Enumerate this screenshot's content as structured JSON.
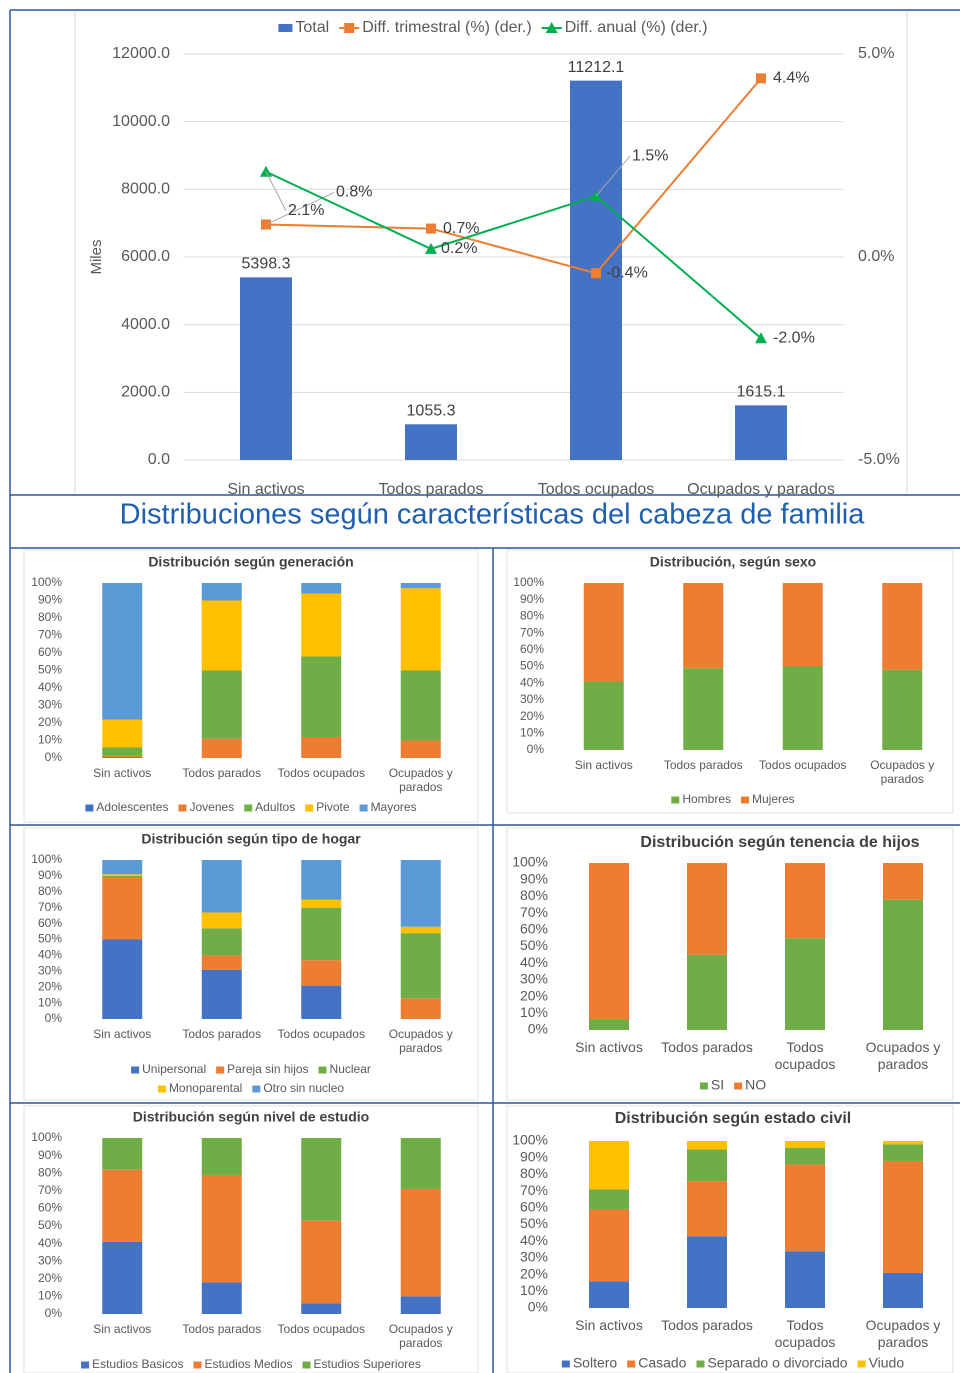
{
  "heading": "Distribuciones según características del cabeza de familia",
  "chart_data": [
    {
      "type": "combo",
      "y_label": "Miles",
      "categories": [
        "Sin activos",
        "Todos parados",
        "Todos ocupados",
        "Ocupados y parados"
      ],
      "series": [
        {
          "name": "Total",
          "type": "bar",
          "color": "#4472c4",
          "values": [
            5398.3,
            1055.3,
            11212.1,
            1615.1
          ]
        },
        {
          "name": "Diff. trimestral (%) (der.)",
          "type": "line",
          "axis": "y2",
          "color": "#ed7d31",
          "marker": "square",
          "values": [
            0.8,
            0.7,
            -0.4,
            4.4
          ],
          "value_labels": [
            "0.8%",
            "0.7%",
            "-0.4%",
            "4.4%"
          ]
        },
        {
          "name": "Diff. anual (%) (der.)",
          "type": "line",
          "axis": "y2",
          "color": "#00b050",
          "marker": "triangle",
          "values": [
            2.1,
            0.2,
            1.5,
            -2.0
          ],
          "value_labels": [
            "2.1%",
            "0.2%",
            "1.5%",
            "-2.0%"
          ]
        }
      ],
      "ylim": [
        0,
        12000
      ],
      "yticks": [
        {
          "value": 0,
          "label": "0.0"
        },
        {
          "value": 2000,
          "label": "2000.0"
        },
        {
          "value": 4000,
          "label": "4000.0"
        },
        {
          "value": 6000,
          "label": "6000.0"
        },
        {
          "value": 8000,
          "label": "8000.0"
        },
        {
          "value": 10000,
          "label": "10000.0"
        },
        {
          "value": 12000,
          "label": "12000.0"
        }
      ],
      "y2lim": [
        -5,
        5
      ],
      "y2ticks": [
        {
          "value": -5,
          "label": "-5.0%"
        },
        {
          "value": 0,
          "label": "0.0%"
        },
        {
          "value": 5,
          "label": "5.0%"
        }
      ],
      "grid": true,
      "legend": "top"
    },
    {
      "type": "stacked_bar",
      "title": "Distribución según generación",
      "categories": [
        "Sin activos",
        "Todos parados",
        "Todos ocupados",
        "Ocupados y parados"
      ],
      "series": [
        {
          "name": "Adolescentes",
          "color": "#4472c4",
          "values": [
            0.5,
            0,
            0,
            0
          ]
        },
        {
          "name": "Jovenes",
          "color": "#ed7d31",
          "values": [
            1,
            11,
            12,
            10
          ]
        },
        {
          "name": "Adultos",
          "color": "#70ad47",
          "values": [
            4.5,
            39,
            46,
            40
          ]
        },
        {
          "name": "Pivote",
          "color": "#ffc000",
          "values": [
            16,
            40,
            36,
            47
          ]
        },
        {
          "name": "Mayores",
          "color": "#5b9bd5",
          "values": [
            78,
            10,
            6,
            3
          ]
        }
      ],
      "ylim": [
        0,
        100
      ],
      "yticks": [
        {
          "value": 0,
          "label": "0%"
        },
        {
          "value": 10,
          "label": "10%"
        },
        {
          "value": 20,
          "label": "20%"
        },
        {
          "value": 30,
          "label": "30%"
        },
        {
          "value": 40,
          "label": "40%"
        },
        {
          "value": 50,
          "label": "50%"
        },
        {
          "value": 60,
          "label": "60%"
        },
        {
          "value": 70,
          "label": "70%"
        },
        {
          "value": 80,
          "label": "80%"
        },
        {
          "value": 90,
          "label": "90%"
        },
        {
          "value": 100,
          "label": "100%"
        }
      ],
      "grid": false,
      "legend": "bottom"
    },
    {
      "type": "stacked_bar",
      "title": "Distribución, según sexo",
      "categories": [
        "Sin activos",
        "Todos parados",
        "Todos ocupados",
        "Ocupados y parados"
      ],
      "series": [
        {
          "name": "Hombres",
          "color": "#70ad47",
          "values": [
            41,
            49,
            50,
            48
          ]
        },
        {
          "name": "Mujeres",
          "color": "#ed7d31",
          "values": [
            59,
            51,
            50,
            52
          ]
        }
      ],
      "ylim": [
        0,
        100
      ],
      "yticks": [
        {
          "value": 0,
          "label": "0%"
        },
        {
          "value": 10,
          "label": "10%"
        },
        {
          "value": 20,
          "label": "20%"
        },
        {
          "value": 30,
          "label": "30%"
        },
        {
          "value": 40,
          "label": "40%"
        },
        {
          "value": 50,
          "label": "50%"
        },
        {
          "value": 60,
          "label": "60%"
        },
        {
          "value": 70,
          "label": "70%"
        },
        {
          "value": 80,
          "label": "80%"
        },
        {
          "value": 90,
          "label": "90%"
        },
        {
          "value": 100,
          "label": "100%"
        }
      ],
      "grid": false,
      "legend": "bottom"
    },
    {
      "type": "stacked_bar",
      "title": "Distribución según tipo de hogar",
      "categories": [
        "Sin activos",
        "Todos parados",
        "Todos ocupados",
        "Ocupados y parados"
      ],
      "series": [
        {
          "name": "Unipersonal",
          "color": "#4472c4",
          "values": [
            50,
            31,
            21,
            0
          ]
        },
        {
          "name": "Pareja sin hijos",
          "color": "#ed7d31",
          "values": [
            39,
            9,
            16,
            13
          ]
        },
        {
          "name": "Nuclear",
          "color": "#70ad47",
          "values": [
            1,
            17,
            33,
            41
          ]
        },
        {
          "name": "Monoparental",
          "color": "#ffc000",
          "values": [
            1,
            10,
            5,
            4
          ]
        },
        {
          "name": "Otro sin nucleo",
          "color": "#5b9bd5",
          "values": [
            9,
            33,
            25,
            42
          ]
        }
      ],
      "ylim": [
        0,
        100
      ],
      "yticks": [
        {
          "value": 0,
          "label": "0%"
        },
        {
          "value": 10,
          "label": "10%"
        },
        {
          "value": 20,
          "label": "20%"
        },
        {
          "value": 30,
          "label": "30%"
        },
        {
          "value": 40,
          "label": "40%"
        },
        {
          "value": 50,
          "label": "50%"
        },
        {
          "value": 60,
          "label": "60%"
        },
        {
          "value": 70,
          "label": "70%"
        },
        {
          "value": 80,
          "label": "80%"
        },
        {
          "value": 90,
          "label": "90%"
        },
        {
          "value": 100,
          "label": "100%"
        }
      ],
      "grid": false,
      "legend": "bottom"
    },
    {
      "type": "stacked_bar",
      "title": "Distribución según tenencia de hijos",
      "categories": [
        "Sin activos",
        "Todos parados",
        "Todos ocupados",
        "Ocupados y parados"
      ],
      "series": [
        {
          "name": "SI",
          "color": "#70ad47",
          "values": [
            6,
            45,
            55,
            78
          ]
        },
        {
          "name": "NO",
          "color": "#ed7d31",
          "values": [
            94,
            55,
            45,
            22
          ]
        }
      ],
      "ylim": [
        0,
        100
      ],
      "yticks": [
        {
          "value": 0,
          "label": "0%"
        },
        {
          "value": 10,
          "label": "10%"
        },
        {
          "value": 20,
          "label": "20%"
        },
        {
          "value": 30,
          "label": "30%"
        },
        {
          "value": 40,
          "label": "40%"
        },
        {
          "value": 50,
          "label": "50%"
        },
        {
          "value": 60,
          "label": "60%"
        },
        {
          "value": 70,
          "label": "70%"
        },
        {
          "value": 80,
          "label": "80%"
        },
        {
          "value": 90,
          "label": "90%"
        },
        {
          "value": 100,
          "label": "100%"
        }
      ],
      "grid": false,
      "legend": "bottom"
    },
    {
      "type": "stacked_bar",
      "title": "Distribución según nivel de estudio",
      "categories": [
        "Sin activos",
        "Todos parados",
        "Todos ocupados",
        "Ocupados y parados"
      ],
      "series": [
        {
          "name": "Estudios Basicos",
          "color": "#4472c4",
          "values": [
            41,
            18,
            6,
            10
          ]
        },
        {
          "name": "Estudios Medios",
          "color": "#ed7d31",
          "values": [
            41,
            61,
            47,
            61
          ]
        },
        {
          "name": "Estudios Superiores",
          "color": "#70ad47",
          "values": [
            18,
            21,
            47,
            29
          ]
        }
      ],
      "ylim": [
        0,
        100
      ],
      "yticks": [
        {
          "value": 0,
          "label": "0%"
        },
        {
          "value": 10,
          "label": "10%"
        },
        {
          "value": 20,
          "label": "20%"
        },
        {
          "value": 30,
          "label": "30%"
        },
        {
          "value": 40,
          "label": "40%"
        },
        {
          "value": 50,
          "label": "50%"
        },
        {
          "value": 60,
          "label": "60%"
        },
        {
          "value": 70,
          "label": "70%"
        },
        {
          "value": 80,
          "label": "80%"
        },
        {
          "value": 90,
          "label": "90%"
        },
        {
          "value": 100,
          "label": "100%"
        }
      ],
      "grid": false,
      "legend": "bottom"
    },
    {
      "type": "stacked_bar",
      "title": "Distribución según estado civil",
      "categories": [
        "Sin activos",
        "Todos parados",
        "Todos ocupados",
        "Ocupados y parados"
      ],
      "series": [
        {
          "name": "Soltero",
          "color": "#4472c4",
          "values": [
            16,
            43,
            34,
            21
          ]
        },
        {
          "name": "Casado",
          "color": "#ed7d31",
          "values": [
            43,
            33,
            52,
            67
          ]
        },
        {
          "name": "Separado o divorciado",
          "color": "#70ad47",
          "values": [
            12,
            19,
            10,
            10
          ]
        },
        {
          "name": "Viudo",
          "color": "#ffc000",
          "values": [
            29,
            5,
            4,
            2
          ]
        }
      ],
      "ylim": [
        0,
        100
      ],
      "yticks": [
        {
          "value": 0,
          "label": "0%"
        },
        {
          "value": 10,
          "label": "10%"
        },
        {
          "value": 20,
          "label": "20%"
        },
        {
          "value": 30,
          "label": "30%"
        },
        {
          "value": 40,
          "label": "40%"
        },
        {
          "value": 50,
          "label": "50%"
        },
        {
          "value": 60,
          "label": "60%"
        },
        {
          "value": 70,
          "label": "70%"
        },
        {
          "value": 80,
          "label": "80%"
        },
        {
          "value": 90,
          "label": "90%"
        },
        {
          "value": 100,
          "label": "100%"
        }
      ],
      "grid": false,
      "legend": "bottom"
    }
  ]
}
